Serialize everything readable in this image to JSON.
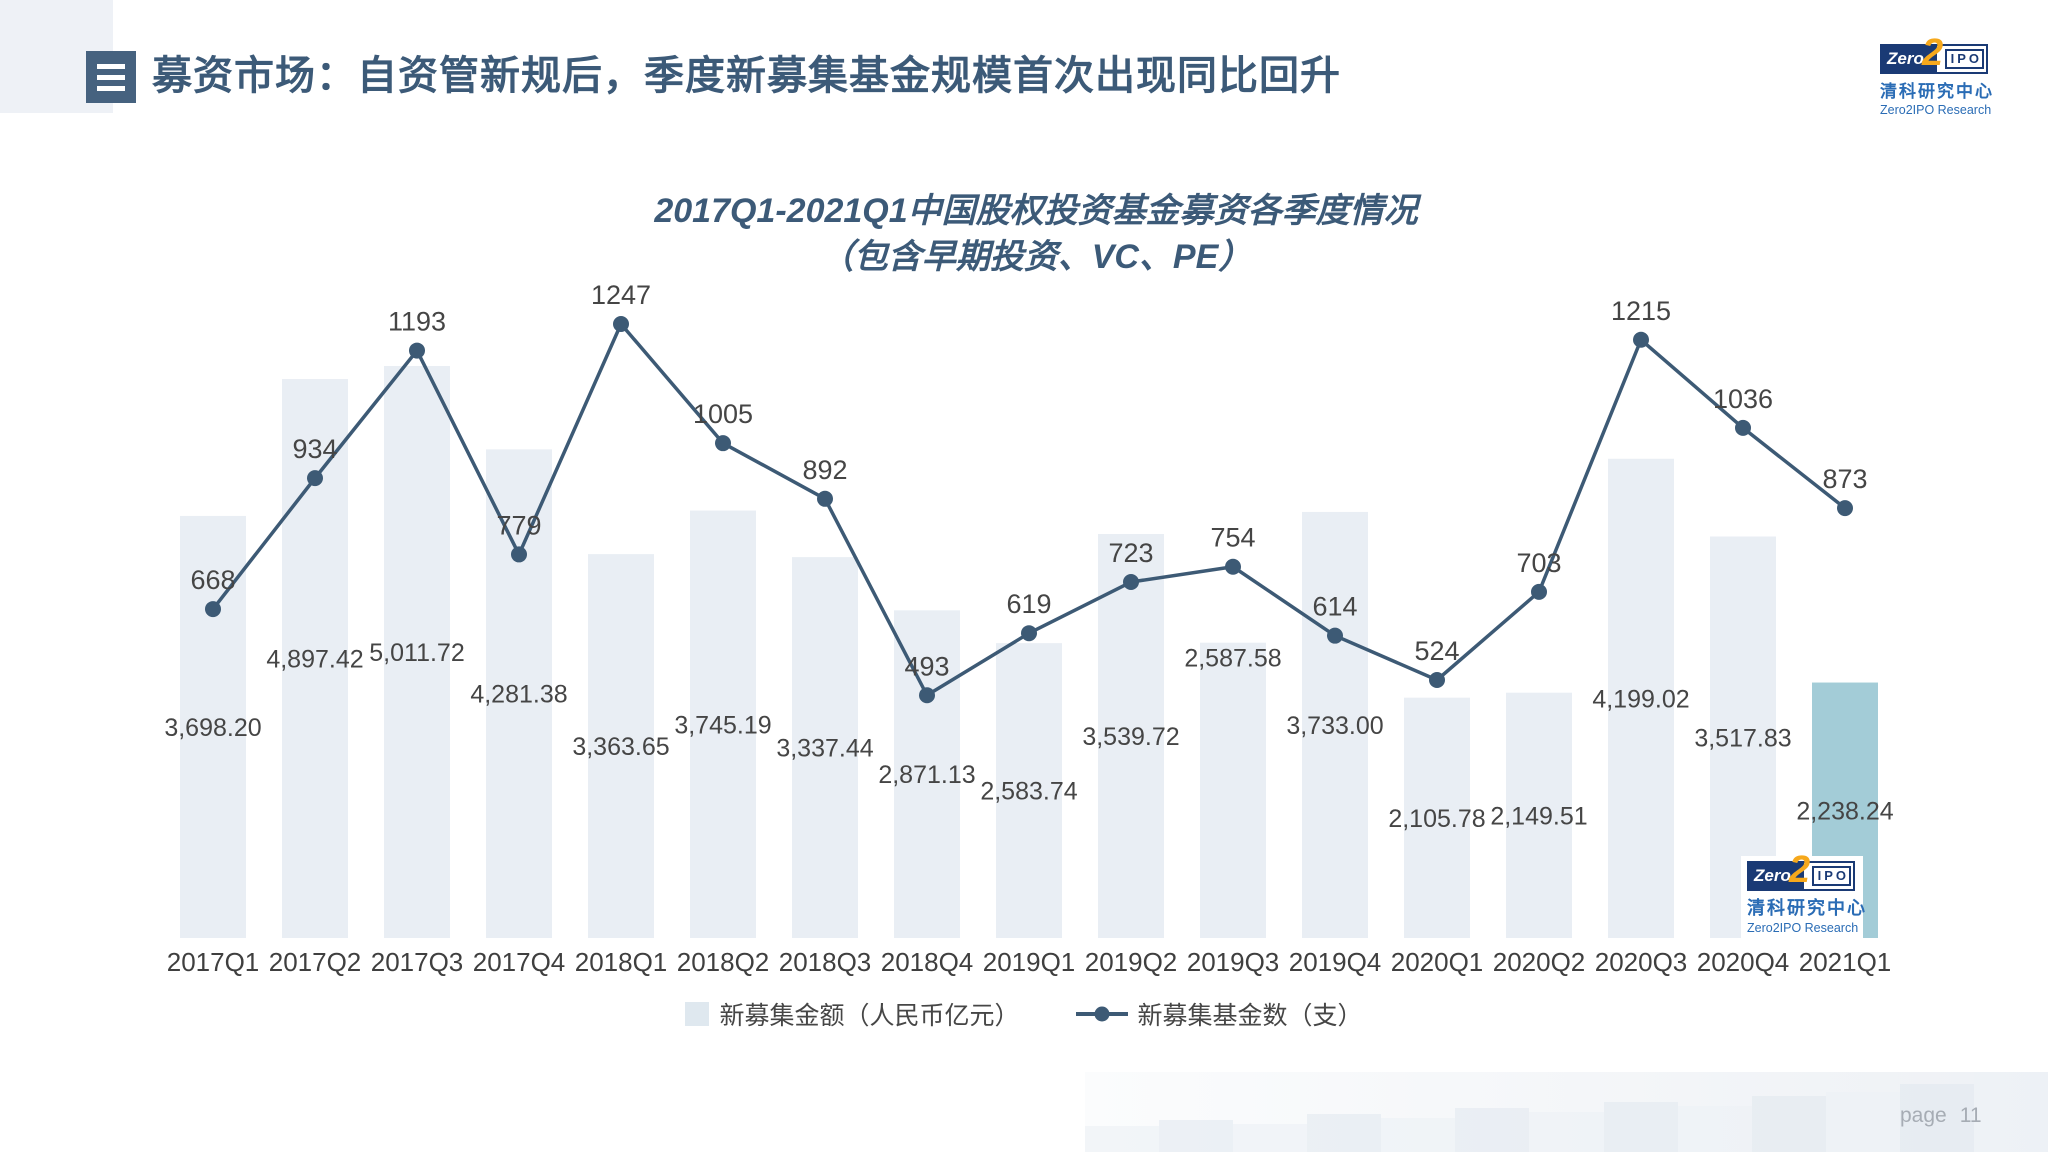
{
  "slide": {
    "header_title": "募资市场：自资管新规后，季度新募集基金规模首次出现同比回升",
    "page_label": "page",
    "page_number": "11"
  },
  "brand": {
    "zero": "Zero",
    "two": "2",
    "ipo": "IPO",
    "name_cn": "清科研究中心",
    "name_en": "Zero2IPO Research",
    "navy": "#1a3a75",
    "orange": "#f6a81c",
    "blue": "#2a6cb5"
  },
  "chart_data": {
    "type": "combo: bar + line",
    "title_line1": "2017Q1-2021Q1中国股权投资基金募资各季度情况",
    "title_line2": "（包含早期投资、VC、PE）",
    "categories": [
      "2017Q1",
      "2017Q2",
      "2017Q3",
      "2017Q4",
      "2018Q1",
      "2018Q2",
      "2018Q3",
      "2018Q4",
      "2019Q1",
      "2019Q2",
      "2019Q3",
      "2019Q4",
      "2020Q1",
      "2020Q2",
      "2020Q3",
      "2020Q4",
      "2021Q1"
    ],
    "series": [
      {
        "name": "新募集金额（人民币亿元）",
        "kind": "bar",
        "values": [
          3698.2,
          4897.42,
          5011.72,
          4281.38,
          3363.65,
          3745.19,
          3337.44,
          2871.13,
          2583.74,
          3539.72,
          2587.58,
          3733.0,
          2105.78,
          2149.51,
          4199.02,
          3517.83,
          2238.24
        ],
        "labels": [
          "3,698.20",
          "4,897.42",
          "5,011.72",
          "4,281.38",
          "3,363.65",
          "3,745.19",
          "3,337.44",
          "2,871.13",
          "2,583.74",
          "3,539.72",
          "2,587.58",
          "3,733.00",
          "2,105.78",
          "2,149.51",
          "4,199.02",
          "3,517.83",
          "2,238.24"
        ]
      },
      {
        "name": "新募集基金数（支）",
        "kind": "line",
        "values": [
          668,
          934,
          1193,
          779,
          1247,
          1005,
          892,
          493,
          619,
          723,
          754,
          614,
          524,
          703,
          1215,
          1036,
          873
        ],
        "labels": [
          "668",
          "934",
          "1193",
          "779",
          "1247",
          "1005",
          "892",
          "493",
          "619",
          "723",
          "754",
          "614",
          "524",
          "703",
          "1215",
          "1036",
          "873"
        ]
      }
    ],
    "colors": {
      "bar": "#e9eef4",
      "bar_highlight": "#a3ccd7",
      "line": "#3d5a75",
      "data_label": "#454545",
      "axis_label": "#3f3f3f",
      "title": "#3c5a78",
      "legend_swatch": "#dfe8ef"
    },
    "layout": {
      "highlight_index": 16,
      "bar_label_position": "center",
      "bar_label_inside_top_indices": [
        10
      ],
      "line_label_position": "above",
      "legend_position": "bottom",
      "value_axes_hidden": true,
      "grid": false,
      "bar_axis_range": [
        0,
        5500
      ],
      "line_axis_range": [
        0,
        1300
      ]
    }
  }
}
